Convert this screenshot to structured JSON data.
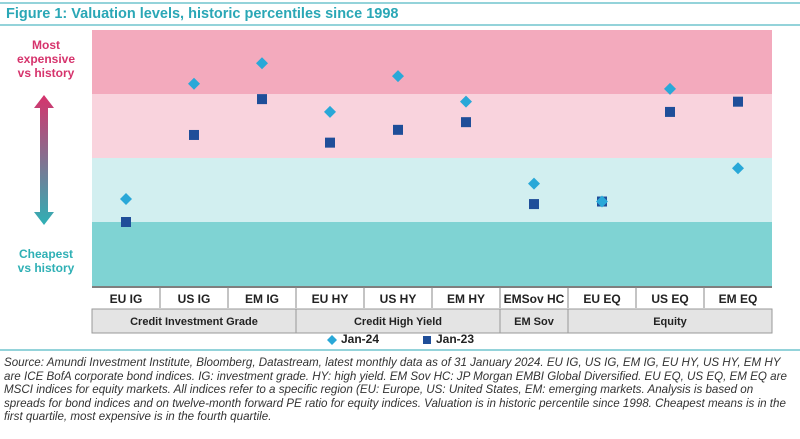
{
  "chart_data": {
    "type": "dot",
    "title": "Figure 1: Valuation levels, historic percentiles since 1998",
    "top_label": "Most expensive vs history",
    "bottom_label": "Cheapest vs history",
    "categories": [
      "EU IG",
      "US IG",
      "EM IG",
      "EU HY",
      "US HY",
      "EM HY",
      "EMSov HC",
      "EU EQ",
      "US EQ",
      "EM EQ"
    ],
    "groups": [
      {
        "label": "Credit Investment Grade",
        "span": 3
      },
      {
        "label": "Credit High Yield",
        "span": 3
      },
      {
        "label": "EM Sov",
        "span": 1
      },
      {
        "label": "Equity",
        "span": 3
      }
    ],
    "ylim": [
      0,
      100
    ],
    "bands": [
      {
        "from": 0,
        "to": 25,
        "color": "#7fd3d3"
      },
      {
        "from": 25,
        "to": 50,
        "color": "#d2eff0"
      },
      {
        "from": 50,
        "to": 75,
        "color": "#f9d3dd"
      },
      {
        "from": 75,
        "to": 100,
        "color": "#f3aabd"
      }
    ],
    "series": [
      {
        "name": "Jan-24",
        "color": "#29a8d8",
        "marker": "diamond",
        "values": [
          34,
          79,
          87,
          68,
          82,
          72,
          40,
          33,
          77,
          46
        ]
      },
      {
        "name": "Jan-23",
        "color": "#1f4e99",
        "marker": "square",
        "values": [
          25,
          59,
          73,
          56,
          61,
          64,
          32,
          33,
          68,
          72
        ]
      }
    ],
    "footnote": "Source: Amundi Investment Institute, Bloomberg, Datastream, latest monthly data as of 31 January 2024. EU IG, US IG, EM IG, EU HY, US HY, EM HY are ICE BofA corporate bond indices. IG: investment grade. HY: high yield. EM Sov HC: JP Morgan EMBI Global Diversified. EU EQ, US EQ, EM EQ are MSCI indices for equity markets. All indices refer to a specific region (EU: Europe, US: United States, EM: emerging markets. Analysis is based on spreads for bond indices and on twelve-month forward PE ratio for equity indices. Valuation is in historic percentile since 1998. Cheapest means is in the first quartile, most expensive is in the fourth quartile."
  }
}
